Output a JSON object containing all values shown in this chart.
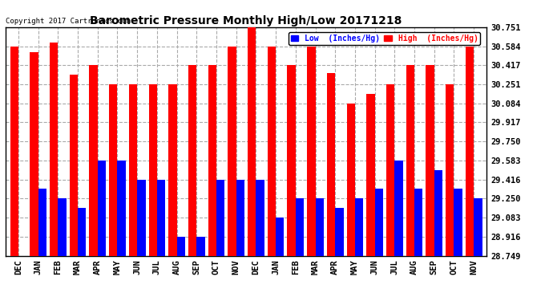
{
  "title": "Barometric Pressure Monthly High/Low 20171218",
  "copyright": "Copyright 2017 Cartronics.com",
  "legend_low": "Low  (Inches/Hg)",
  "legend_high": "High  (Inches/Hg)",
  "months": [
    "DEC",
    "JAN",
    "FEB",
    "MAR",
    "APR",
    "MAY",
    "JUN",
    "JUL",
    "AUG",
    "SEP",
    "OCT",
    "NOV",
    "DEC",
    "JAN",
    "FEB",
    "MAR",
    "APR",
    "MAY",
    "JUN",
    "JUL",
    "AUG",
    "SEP",
    "OCT",
    "NOV"
  ],
  "high_values": [
    30.584,
    30.534,
    30.617,
    30.334,
    30.417,
    30.251,
    30.251,
    30.251,
    30.251,
    30.417,
    30.417,
    30.584,
    30.751,
    30.584,
    30.417,
    30.584,
    30.351,
    30.084,
    30.167,
    30.251,
    30.417,
    30.417,
    30.251,
    30.584
  ],
  "low_values": [
    28.749,
    29.334,
    29.25,
    29.167,
    29.583,
    29.583,
    29.416,
    29.416,
    28.916,
    28.916,
    29.416,
    29.416,
    29.416,
    29.083,
    29.25,
    29.25,
    29.167,
    29.25,
    29.334,
    29.583,
    29.334,
    29.5,
    29.334,
    29.25
  ],
  "ylim": [
    28.749,
    30.751
  ],
  "yticks": [
    28.749,
    28.916,
    29.083,
    29.25,
    29.416,
    29.583,
    29.75,
    29.917,
    30.084,
    30.251,
    30.417,
    30.584,
    30.751
  ],
  "bar_width": 0.42,
  "high_color": "#ff0000",
  "low_color": "#0000ff",
  "bg_color": "#ffffff",
  "grid_color": "#aaaaaa",
  "title_color": "#000000",
  "copyright_color": "#000000"
}
